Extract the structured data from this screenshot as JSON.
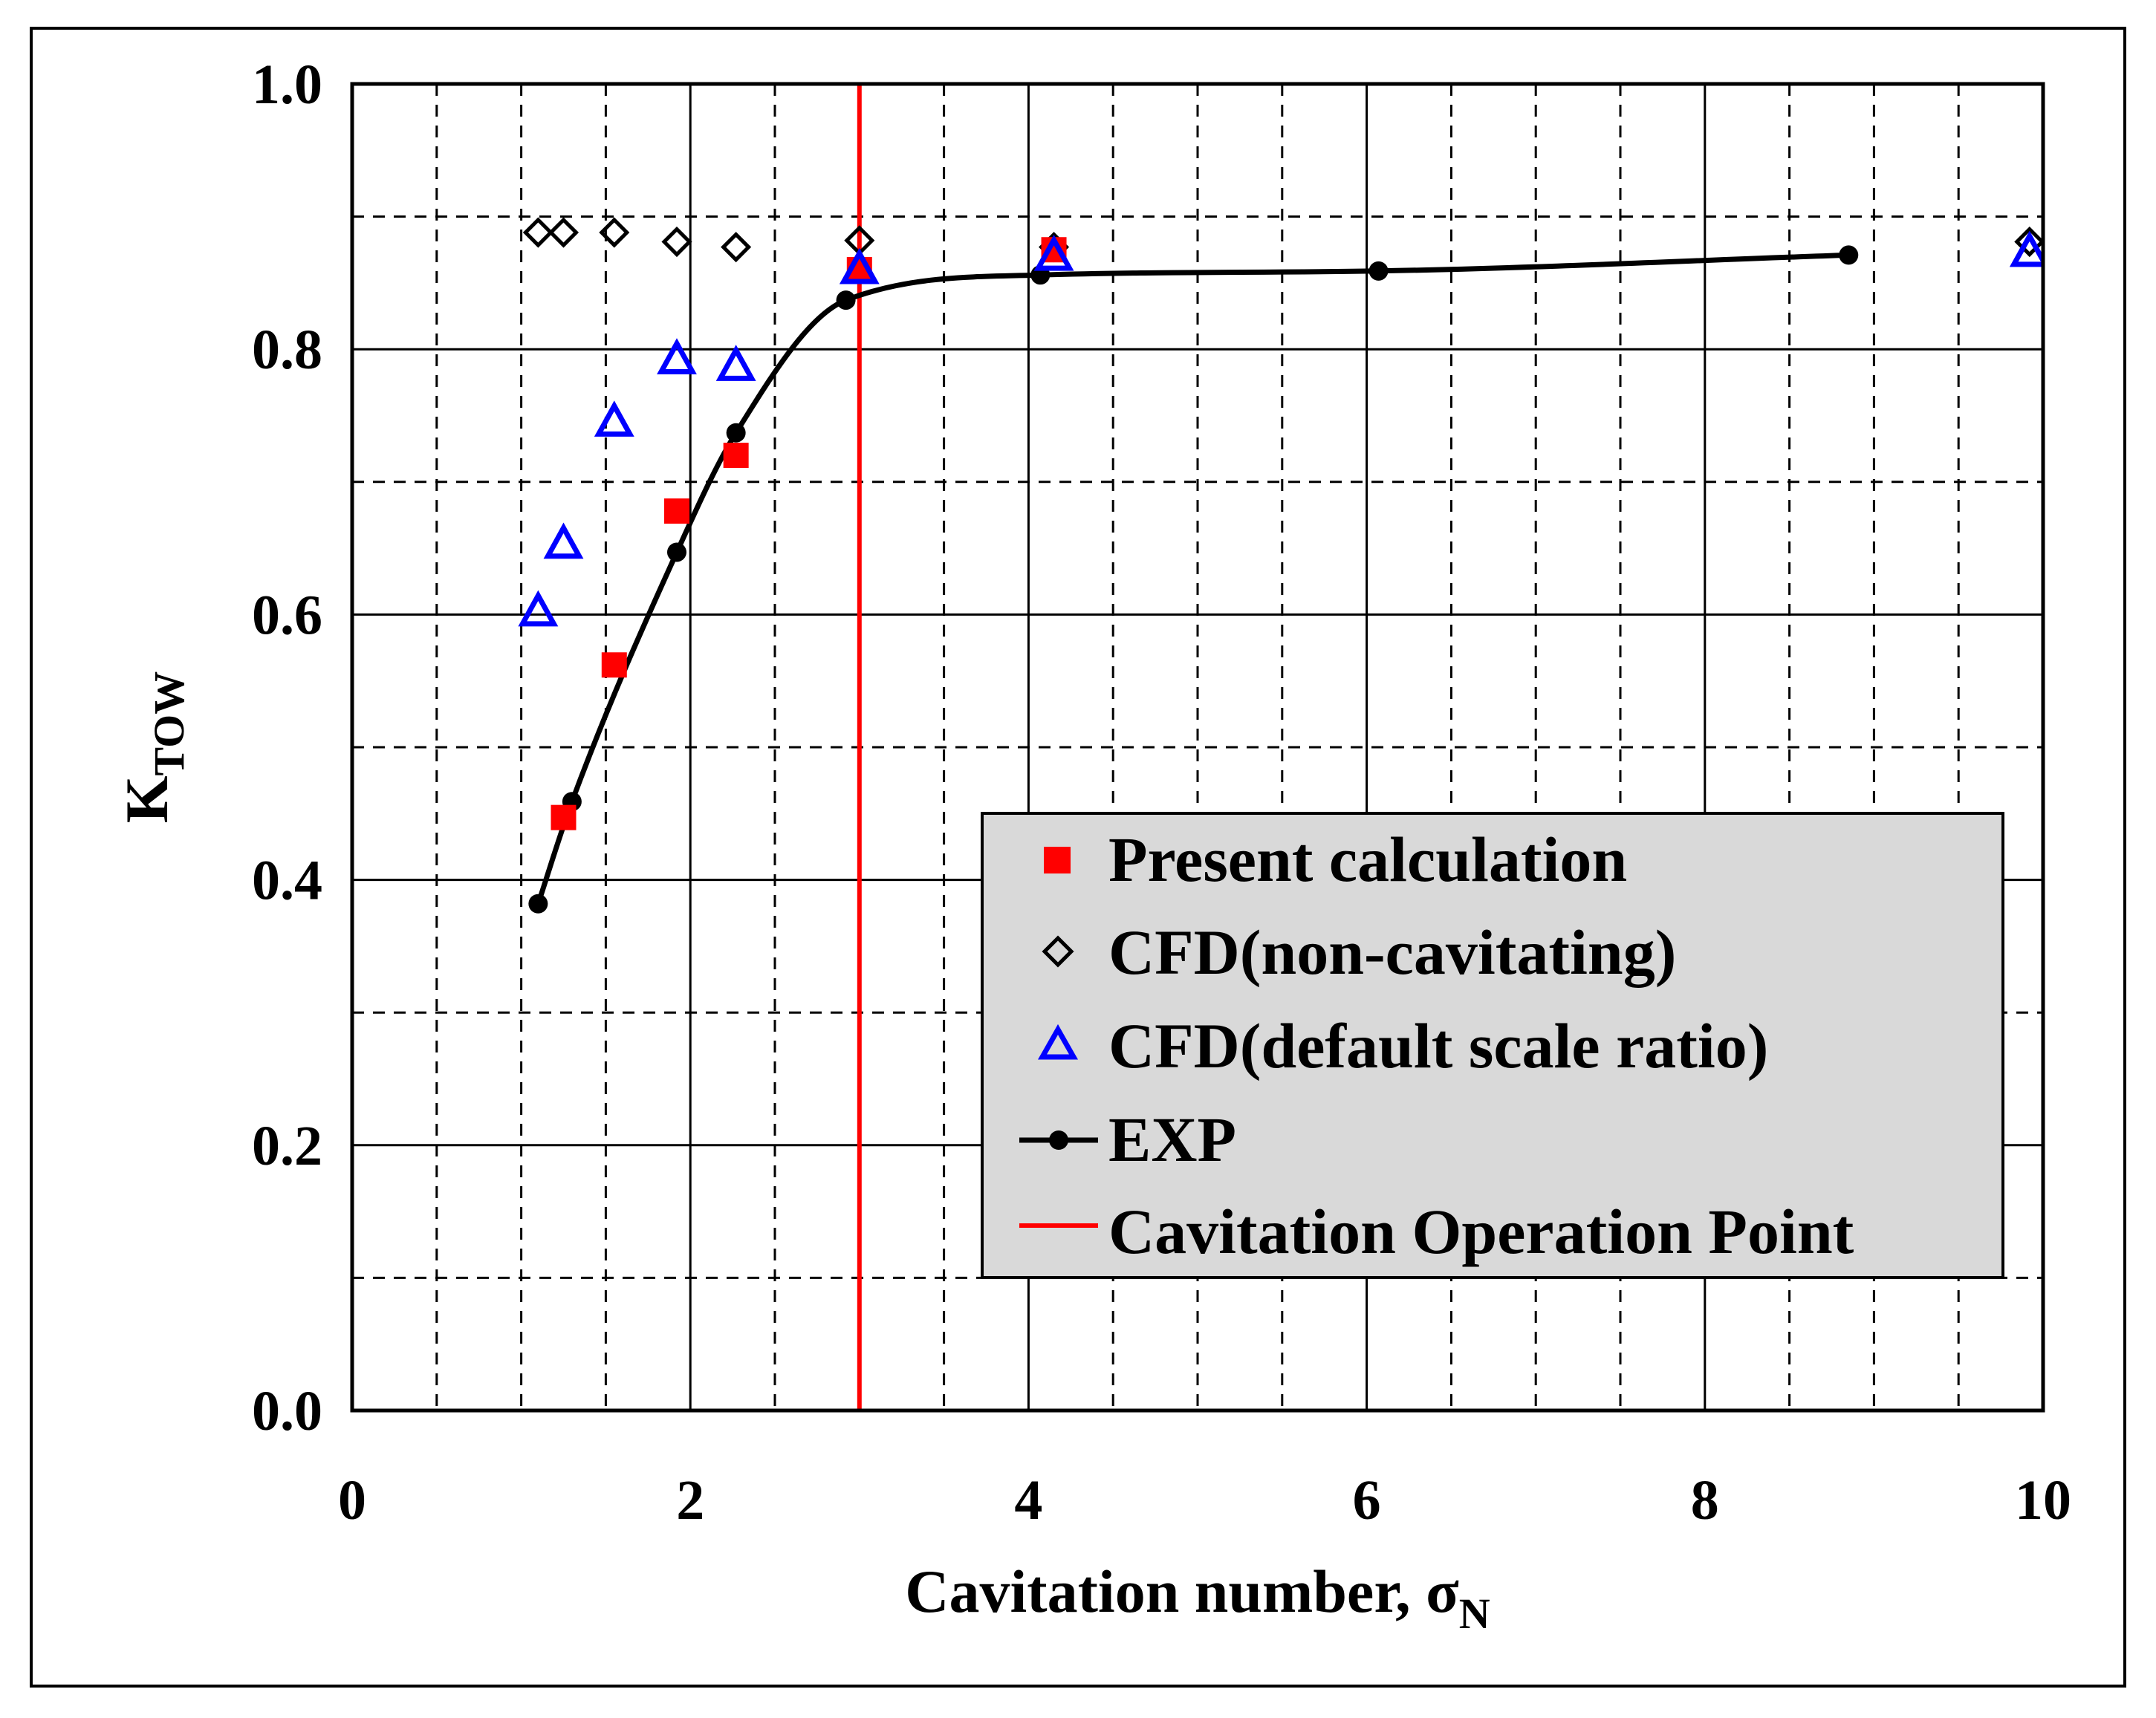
{
  "chart_data": {
    "type": "scatter",
    "xlabel": "Cavitation number, σ",
    "xlabel_subscript": "N",
    "ylabel": "K",
    "ylabel_subscript": "TOW",
    "xlim": [
      0,
      10
    ],
    "ylim": [
      0,
      1.0
    ],
    "x_ticks": [
      "0",
      "2",
      "4",
      "6",
      "8",
      "10"
    ],
    "y_ticks": [
      "0.0",
      "0.2",
      "0.4",
      "0.6",
      "0.8",
      "1.0"
    ],
    "grid": true,
    "legend_position": "bottom-right",
    "series": [
      {
        "name": "Present calculation",
        "marker": "filled-square",
        "color": "#ff0000",
        "x": [
          1.25,
          1.55,
          1.92,
          2.27,
          3.0,
          4.15
        ],
        "y": [
          0.447,
          0.562,
          0.678,
          0.72,
          0.86,
          0.875
        ]
      },
      {
        "name": "CFD(non-cavitating)",
        "marker": "open-diamond",
        "color": "#000000",
        "x": [
          1.1,
          1.25,
          1.55,
          1.92,
          2.27,
          3.0,
          4.15,
          9.92
        ],
        "y": [
          0.888,
          0.888,
          0.888,
          0.881,
          0.877,
          0.882,
          0.877,
          0.881
        ]
      },
      {
        "name": "CFD(default scale ratio)",
        "marker": "open-triangle",
        "color": "#0000ff",
        "x": [
          1.1,
          1.25,
          1.55,
          1.92,
          2.27,
          3.0,
          4.15,
          9.92
        ],
        "y": [
          0.602,
          0.653,
          0.745,
          0.792,
          0.787,
          0.86,
          0.87,
          0.873
        ]
      },
      {
        "name": "EXP",
        "marker": "filled-circle-line",
        "color": "#000000",
        "x": [
          1.1,
          1.3,
          1.92,
          2.27,
          2.92,
          4.07,
          6.07,
          8.85
        ],
        "y": [
          0.382,
          0.459,
          0.647,
          0.737,
          0.837,
          0.856,
          0.859,
          0.871
        ]
      }
    ],
    "reference_line": {
      "name": "Cavitation Operation Point",
      "orientation": "vertical",
      "x": 3.0,
      "color": "#ff0000"
    }
  }
}
